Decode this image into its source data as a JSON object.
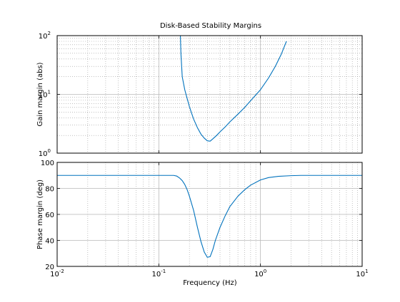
{
  "chart_data": [
    {
      "type": "line",
      "title": "Disk-Based Stability Margins",
      "ylabel": "Gain margin (abs)",
      "xscale": "log",
      "yscale": "log",
      "xlim": [
        0.01,
        10
      ],
      "ylim": [
        1,
        100
      ],
      "grid": true,
      "yticks": [
        {
          "base": "10",
          "exp": "0"
        },
        {
          "base": "10",
          "exp": "1"
        },
        {
          "base": "10",
          "exp": "2"
        }
      ],
      "series": [
        {
          "color": "#0072bd",
          "x": [
            0.163,
            0.165,
            0.17,
            0.18,
            0.19,
            0.2,
            0.21,
            0.22,
            0.24,
            0.26,
            0.28,
            0.3,
            0.32,
            0.34,
            0.37,
            0.4,
            0.45,
            0.5,
            0.6,
            0.7,
            0.8,
            1.0,
            1.2,
            1.4,
            1.6,
            1.8
          ],
          "y": [
            100,
            50,
            20,
            12,
            8.5,
            6.2,
            4.8,
            3.8,
            2.7,
            2.1,
            1.8,
            1.62,
            1.6,
            1.75,
            2.0,
            2.3,
            2.8,
            3.4,
            4.6,
            6.0,
            7.8,
            12,
            19,
            30,
            48,
            80
          ]
        }
      ]
    },
    {
      "type": "line",
      "xlabel": "Frequency (Hz)",
      "ylabel": "Phase margin (deg)",
      "xscale": "log",
      "xlim": [
        0.01,
        10
      ],
      "ylim": [
        20,
        100
      ],
      "grid": true,
      "xticks": [
        {
          "base": "10",
          "exp": "-2"
        },
        {
          "base": "10",
          "exp": "-1"
        },
        {
          "base": "10",
          "exp": "0"
        },
        {
          "base": "10",
          "exp": "1"
        }
      ],
      "yticks": [
        "20",
        "40",
        "60",
        "80",
        "100"
      ],
      "series": [
        {
          "color": "#0072bd",
          "x": [
            0.01,
            0.05,
            0.1,
            0.14,
            0.15,
            0.16,
            0.17,
            0.18,
            0.19,
            0.2,
            0.22,
            0.24,
            0.26,
            0.28,
            0.3,
            0.32,
            0.34,
            0.36,
            0.4,
            0.45,
            0.5,
            0.6,
            0.7,
            0.8,
            1.0,
            1.2,
            1.5,
            2.0,
            2.5,
            3.0,
            5.0,
            10.0
          ],
          "y": [
            90,
            90,
            90,
            90,
            89.5,
            88,
            86,
            83,
            79,
            74,
            63,
            50,
            39,
            31,
            27,
            27.5,
            33,
            40,
            50,
            59,
            66,
            74,
            79,
            82.5,
            86.5,
            88.3,
            89.3,
            89.8,
            90,
            90,
            90,
            90
          ]
        }
      ]
    }
  ]
}
